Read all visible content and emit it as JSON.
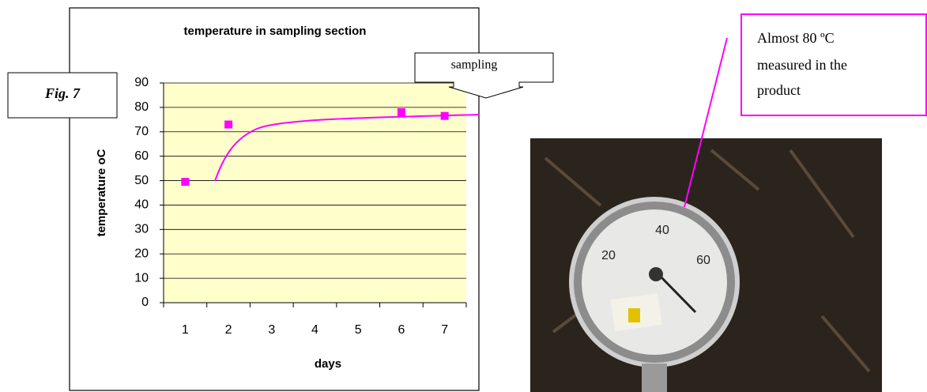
{
  "chart_data": {
    "type": "scatter",
    "title": "temperature in sampling section",
    "x_label": "days",
    "y_label": "temperature oC",
    "categories": [
      "1",
      "2",
      "3",
      "4",
      "5",
      "6",
      "7"
    ],
    "values": [
      49.5,
      73,
      null,
      null,
      null,
      78,
      76.5
    ],
    "color": "#ff00ff",
    "ylim": [
      0,
      90
    ],
    "yticks": [
      0,
      10,
      20,
      30,
      40,
      50,
      60,
      70,
      80,
      90
    ],
    "grid": true
  },
  "figure_label": "Fig. 7",
  "sampling_callout": "sampling",
  "photo_callout": [
    "Almost 80 ºC",
    "measured in the",
    "product"
  ],
  "photo": {
    "dial_labels": [
      "20",
      "40",
      "60"
    ]
  }
}
